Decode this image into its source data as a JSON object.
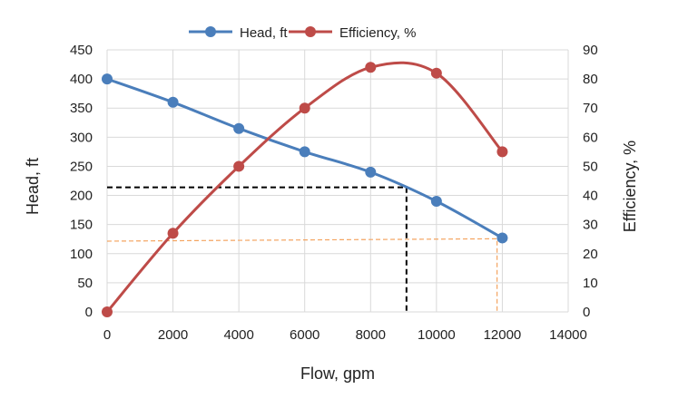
{
  "chart_data": {
    "type": "line",
    "xlabel": "Flow, gpm",
    "ylabel": "Head, ft",
    "y2label": "Efficiency, %",
    "xlim": [
      0,
      14000
    ],
    "ylim": [
      0,
      450
    ],
    "y2lim": [
      0,
      90
    ],
    "xticks": [
      0,
      2000,
      4000,
      6000,
      8000,
      10000,
      12000,
      14000
    ],
    "yticks": [
      0,
      50,
      100,
      150,
      200,
      250,
      300,
      350,
      400,
      450
    ],
    "y2ticks": [
      0,
      10,
      20,
      30,
      40,
      50,
      60,
      70,
      80,
      90
    ],
    "grid": true,
    "legend_position": "top",
    "series": [
      {
        "name": "Head, ft",
        "axis": "left",
        "color": "#4a7ebb",
        "x": [
          0,
          2000,
          4000,
          6000,
          8000,
          10000,
          12000
        ],
        "values": [
          400,
          360,
          315,
          275,
          240,
          190,
          127
        ]
      },
      {
        "name": "Efficiency, %",
        "axis": "right",
        "color": "#be4b48",
        "x": [
          0,
          2000,
          4000,
          6000,
          8000,
          10000,
          12000
        ],
        "values": [
          0,
          27,
          50,
          70,
          84,
          82,
          55
        ]
      }
    ],
    "guides": [
      {
        "color": "#000000",
        "points": [
          [
            0,
            214
          ],
          [
            9090,
            214
          ],
          [
            9090,
            0
          ]
        ]
      },
      {
        "color": "#f4a460",
        "points": [
          [
            0,
            121.5
          ],
          [
            11840,
            125.6
          ],
          [
            11840,
            0
          ]
        ]
      }
    ]
  }
}
